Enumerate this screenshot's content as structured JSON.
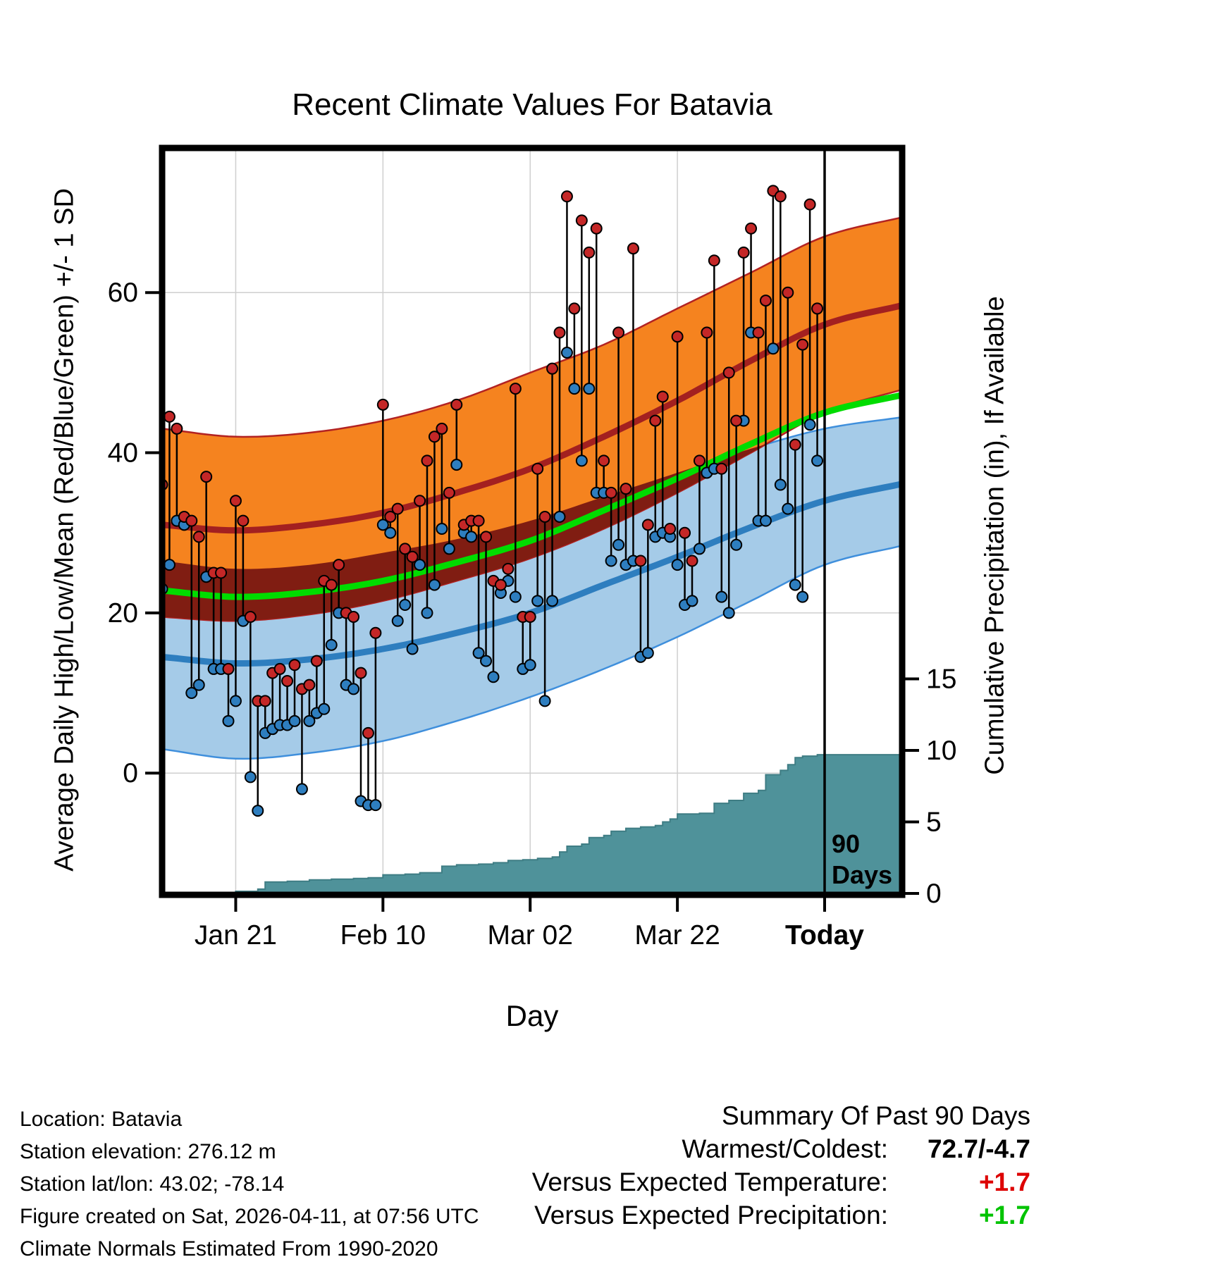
{
  "title": "Recent Climate Values For Batavia",
  "axes": {
    "left_label": "Average Daily High/Low/Mean (Red/Blue/Green) +/- 1 SD",
    "right_label": "Cumulative Precipitation (in), If Available",
    "x_label": "Day",
    "left_ticks": [
      0,
      20,
      40,
      60
    ],
    "right_ticks": [
      0,
      5,
      10,
      15
    ],
    "x_ticks": [
      {
        "day": 10,
        "label": "Jan 21"
      },
      {
        "day": 30,
        "label": "Feb 10"
      },
      {
        "day": 50,
        "label": "Mar 02"
      },
      {
        "day": 70,
        "label": "Mar 22"
      },
      {
        "day": 90,
        "label": "Today",
        "bold": true
      }
    ]
  },
  "annotation": {
    "line1": "90",
    "line2": "Days"
  },
  "footer": {
    "location": "Location: Batavia",
    "elevation": "Station elevation: 276.12 m",
    "latlon": "Station lat/lon: 43.02; -78.14",
    "created": "Figure created on Sat, 2026-04-11, at 07:56 UTC",
    "normals": "Climate Normals Estimated From 1990-2020"
  },
  "summary": {
    "header": "Summary Of Past 90 Days",
    "warmest_coldest_label": "Warmest/Coldest:",
    "warmest_coldest_value": "72.7/-4.7",
    "vs_temp_label": "Versus Expected Temperature:",
    "vs_temp_value": "+1.7",
    "vs_precip_label": "Versus Expected Precipitation:",
    "vs_precip_value": "+1.7"
  },
  "colors": {
    "high_band": "#f5831f",
    "high_band_edge": "#b22222",
    "high_line": "#a32020",
    "overlap_band": "#801d12",
    "mean_line": "#00dc00",
    "low_band": "#a5cbe8",
    "low_band_edge": "#3f8fdc",
    "low_line": "#2e7ebf",
    "precip_fill": "#4f929a",
    "precip_edge": "#3f7d84",
    "high_dot": "#c42727",
    "low_dot": "#2e7ebf",
    "stem": "#000000",
    "grid": "#cfcfcf",
    "positive_temp": "#dd0000",
    "positive_precip": "#00c300"
  },
  "chart_data": [
    {
      "type": "area",
      "name": "climatology_bands",
      "title": "Recent Climate Values For Batavia",
      "xlabel": "Day",
      "ylabel": "Average Daily High/Low/Mean (Red/Blue/Green) +/- 1 SD",
      "ylabel_right": "Cumulative Precipitation (in), If Available",
      "xtick_labels": [
        "Jan 21",
        "Feb 10",
        "Mar 02",
        "Mar 22",
        "Today"
      ],
      "ylim": [
        -15,
        78
      ],
      "days": [
        0,
        10,
        20,
        30,
        40,
        50,
        60,
        70,
        80,
        90,
        101
      ],
      "high_upper": [
        43,
        42,
        42.5,
        44,
        46.5,
        50,
        53.5,
        58,
        62.5,
        67,
        69.5
      ],
      "high_mean": [
        31,
        30.3,
        31,
        32.5,
        35,
        38,
        42,
        46.5,
        51.5,
        56,
        58.5
      ],
      "high_lower": [
        19.5,
        19,
        19.8,
        21.5,
        24,
        26.8,
        30.5,
        35,
        40,
        45,
        48
      ],
      "mean_line": [
        22.8,
        22,
        22.6,
        24,
        26.3,
        29,
        32.8,
        36.8,
        41.1,
        45,
        47.3
      ],
      "low_upper": [
        26.5,
        25.5,
        26,
        27.5,
        29.2,
        31.5,
        34.5,
        37.5,
        40.5,
        43,
        44.5
      ],
      "low_mean": [
        14.5,
        13.7,
        14.2,
        15.5,
        17.5,
        20,
        23.5,
        27,
        30.7,
        34,
        36.2
      ],
      "low_lower": [
        3,
        1.8,
        2.5,
        4,
        6.5,
        9.5,
        13,
        17,
        21.5,
        26,
        28.5
      ]
    },
    {
      "type": "scatter",
      "name": "daily_high_low",
      "note": "points are [day_index, daily_high_F, daily_low_F], day 0 = 90 days ago",
      "points": [
        [
          0,
          36,
          23
        ],
        [
          1,
          44.5,
          26
        ],
        [
          2,
          43,
          31.5
        ],
        [
          3,
          32,
          31
        ],
        [
          4,
          31.5,
          10
        ],
        [
          5,
          29.5,
          11
        ],
        [
          6,
          37,
          24.5
        ],
        [
          7,
          25,
          13
        ],
        [
          8,
          25,
          13
        ],
        [
          9,
          13,
          6.5
        ],
        [
          10,
          34,
          9
        ],
        [
          11,
          31.5,
          19
        ],
        [
          12,
          19.5,
          -0.5
        ],
        [
          13,
          9,
          -4.7
        ],
        [
          14,
          9,
          5
        ],
        [
          15,
          12.5,
          5.5
        ],
        [
          16,
          13,
          6
        ],
        [
          17,
          11.5,
          6
        ],
        [
          18,
          13.5,
          6.5
        ],
        [
          19,
          10.5,
          -2
        ],
        [
          20,
          11,
          6.5
        ],
        [
          21,
          14,
          7.5
        ],
        [
          22,
          24,
          8
        ],
        [
          23,
          23.5,
          16
        ],
        [
          24,
          26,
          20
        ],
        [
          25,
          20,
          11
        ],
        [
          26,
          19.5,
          10.5
        ],
        [
          27,
          12.5,
          -3.5
        ],
        [
          28,
          5,
          -4
        ],
        [
          29,
          17.5,
          -4
        ],
        [
          30,
          46,
          31
        ],
        [
          31,
          32,
          30
        ],
        [
          32,
          33,
          19
        ],
        [
          33,
          28,
          21
        ],
        [
          34,
          27,
          15.5
        ],
        [
          35,
          34,
          26
        ],
        [
          36,
          39,
          20
        ],
        [
          37,
          42,
          23.5
        ],
        [
          38,
          43,
          30.5
        ],
        [
          39,
          35,
          28
        ],
        [
          40,
          46,
          38.5
        ],
        [
          41,
          31,
          30
        ],
        [
          42,
          31.5,
          29.5
        ],
        [
          43,
          31.5,
          15
        ],
        [
          44,
          29.5,
          14
        ],
        [
          45,
          24,
          12
        ],
        [
          46,
          23.5,
          22.5
        ],
        [
          47,
          25.5,
          24
        ],
        [
          48,
          48,
          22
        ],
        [
          49,
          19.5,
          13
        ],
        [
          50,
          19.5,
          13.5
        ],
        [
          51,
          38,
          21.5
        ],
        [
          52,
          32,
          9
        ],
        [
          53,
          50.5,
          21.5
        ],
        [
          54,
          55,
          32
        ],
        [
          55,
          72,
          52.5
        ],
        [
          56,
          58,
          48
        ],
        [
          57,
          69,
          39
        ],
        [
          58,
          65,
          48
        ],
        [
          59,
          68,
          35
        ],
        [
          60,
          39,
          35
        ],
        [
          61,
          35,
          26.5
        ],
        [
          62,
          55,
          28.5
        ],
        [
          63,
          35.5,
          26
        ],
        [
          64,
          65.5,
          26.5
        ],
        [
          65,
          26.5,
          14.5
        ],
        [
          66,
          31,
          15
        ],
        [
          67,
          44,
          29.5
        ],
        [
          68,
          47,
          30
        ],
        [
          69,
          30.5,
          29.5
        ],
        [
          70,
          54.5,
          26
        ],
        [
          71,
          30,
          21
        ],
        [
          72,
          26.5,
          21.5
        ],
        [
          73,
          39,
          28
        ],
        [
          74,
          55,
          37.5
        ],
        [
          75,
          64,
          38
        ],
        [
          76,
          38,
          22
        ],
        [
          77,
          50,
          20
        ],
        [
          78,
          44,
          28.5
        ],
        [
          79,
          65,
          44
        ],
        [
          80,
          68,
          55
        ],
        [
          81,
          55,
          31.5
        ],
        [
          82,
          59,
          31.5
        ],
        [
          83,
          72.7,
          53
        ],
        [
          84,
          72,
          36
        ],
        [
          85,
          60,
          33
        ],
        [
          86,
          41,
          23.5
        ],
        [
          87,
          53.5,
          22
        ],
        [
          88,
          71,
          43.5
        ],
        [
          89,
          58,
          39
        ]
      ]
    },
    {
      "type": "area",
      "name": "cumulative_precipitation",
      "ylim": [
        0,
        15
      ],
      "points": [
        [
          0,
          0
        ],
        [
          7,
          0.05
        ],
        [
          10,
          0.15
        ],
        [
          13,
          0.3
        ],
        [
          14,
          0.8
        ],
        [
          17,
          0.85
        ],
        [
          20,
          0.95
        ],
        [
          23,
          1.0
        ],
        [
          26,
          1.05
        ],
        [
          28,
          1.1
        ],
        [
          30,
          1.3
        ],
        [
          33,
          1.35
        ],
        [
          35,
          1.45
        ],
        [
          38,
          1.9
        ],
        [
          40,
          2.0
        ],
        [
          43,
          2.05
        ],
        [
          45,
          2.15
        ],
        [
          47,
          2.3
        ],
        [
          49,
          2.35
        ],
        [
          51,
          2.45
        ],
        [
          53,
          2.55
        ],
        [
          54,
          2.9
        ],
        [
          55,
          3.3
        ],
        [
          57,
          3.45
        ],
        [
          58,
          3.9
        ],
        [
          60,
          4.05
        ],
        [
          61,
          4.35
        ],
        [
          63,
          4.55
        ],
        [
          65,
          4.65
        ],
        [
          67,
          4.75
        ],
        [
          68,
          5.0
        ],
        [
          69,
          5.2
        ],
        [
          70,
          5.55
        ],
        [
          73,
          5.6
        ],
        [
          75,
          6.3
        ],
        [
          77,
          6.5
        ],
        [
          79,
          7.0
        ],
        [
          81,
          7.2
        ],
        [
          82,
          8.3
        ],
        [
          84,
          8.6
        ],
        [
          85,
          9.0
        ],
        [
          86,
          9.5
        ],
        [
          87,
          9.6
        ],
        [
          89,
          9.7
        ],
        [
          101,
          9.75
        ]
      ]
    }
  ]
}
